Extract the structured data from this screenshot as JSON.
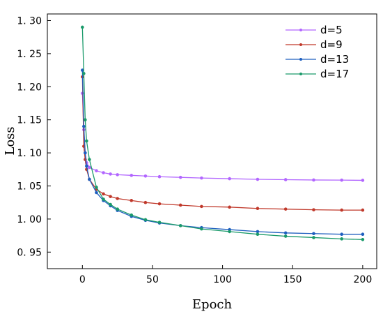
{
  "chart_data": {
    "type": "line",
    "xlabel": "Epoch",
    "ylabel": "Loss",
    "xlim": [
      -25,
      210
    ],
    "ylim": [
      0.925,
      1.31
    ],
    "xticks": [
      0,
      50,
      100,
      150,
      200
    ],
    "yticks": [
      0.95,
      1.0,
      1.05,
      1.1,
      1.15,
      1.2,
      1.25,
      1.3
    ],
    "ytick_labels": [
      "0. 95",
      "1. 00",
      "1. 05",
      "1. 10",
      "1. 15",
      "1. 20",
      "1. 25",
      "1. 30"
    ],
    "legend_position": "top-right",
    "series": [
      {
        "name": "d=5",
        "color": "#b266ff",
        "x": [
          0,
          1,
          2,
          3,
          5,
          10,
          15,
          20,
          25,
          35,
          45,
          55,
          70,
          85,
          105,
          125,
          145,
          165,
          185,
          200
        ],
        "y": [
          1.19,
          1.135,
          1.1,
          1.085,
          1.078,
          1.073,
          1.07,
          1.068,
          1.067,
          1.066,
          1.065,
          1.064,
          1.063,
          1.062,
          1.061,
          1.06,
          1.0595,
          1.059,
          1.0588,
          1.0585
        ]
      },
      {
        "name": "d=9",
        "color": "#c0392b",
        "x": [
          0,
          1,
          2,
          3,
          5,
          10,
          15,
          20,
          25,
          35,
          45,
          55,
          70,
          85,
          105,
          125,
          145,
          165,
          185,
          200
        ],
        "y": [
          1.215,
          1.11,
          1.09,
          1.075,
          1.06,
          1.045,
          1.038,
          1.034,
          1.031,
          1.028,
          1.025,
          1.023,
          1.021,
          1.019,
          1.018,
          1.016,
          1.015,
          1.014,
          1.0135,
          1.0135
        ]
      },
      {
        "name": "d=13",
        "color": "#1f5fbf",
        "x": [
          0,
          1,
          2,
          3,
          5,
          10,
          15,
          20,
          25,
          35,
          45,
          55,
          70,
          85,
          105,
          125,
          145,
          165,
          185,
          200
        ],
        "y": [
          1.225,
          1.14,
          1.1,
          1.08,
          1.06,
          1.04,
          1.028,
          1.02,
          1.013,
          1.004,
          0.998,
          0.994,
          0.99,
          0.987,
          0.984,
          0.981,
          0.979,
          0.978,
          0.977,
          0.977
        ]
      },
      {
        "name": "d=17",
        "color": "#1a9a6a",
        "x": [
          0,
          1,
          2,
          3,
          5,
          10,
          15,
          20,
          25,
          35,
          45,
          55,
          70,
          85,
          105,
          125,
          145,
          165,
          185,
          200
        ],
        "y": [
          1.29,
          1.22,
          1.15,
          1.118,
          1.09,
          1.048,
          1.03,
          1.022,
          1.015,
          1.006,
          0.999,
          0.995,
          0.99,
          0.985,
          0.981,
          0.977,
          0.974,
          0.972,
          0.97,
          0.969
        ]
      }
    ]
  }
}
